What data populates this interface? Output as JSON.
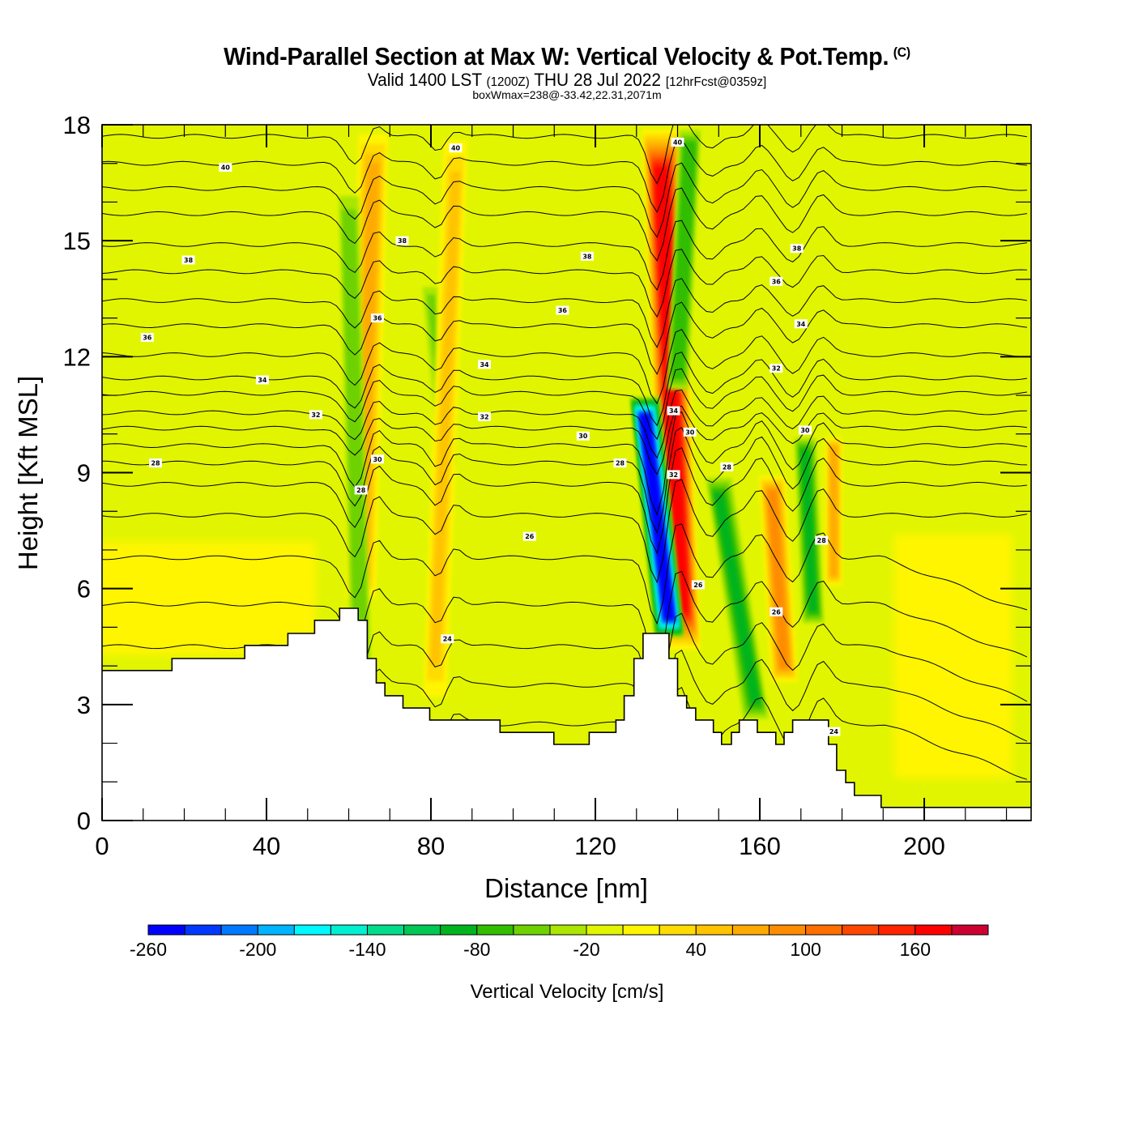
{
  "header": {
    "title": "Wind-Parallel Section at Max W: Vertical Velocity & Pot.Temp.",
    "copyright_mark": "(C)",
    "valid_prefix": "Valid 1400 LST",
    "valid_utc": "(1200Z)",
    "valid_date": "THU 28 Jul 2022",
    "forecast_info": "[12hrFcst@0359z]",
    "box_max": "boxWmax=238@-33.42,22.31,2071m"
  },
  "chart_data": {
    "type": "heatmap",
    "title": "Wind-Parallel Section at Max W: Vertical Velocity & Pot.Temp.",
    "xlabel": "Distance [nm]",
    "ylabel": "Height [Kft MSL]",
    "xlim": [
      0,
      226
    ],
    "ylim": [
      0,
      18
    ],
    "x_ticks": [
      0,
      40,
      80,
      120,
      160,
      200
    ],
    "x_tick_labels": [
      "0",
      "40",
      "80",
      "120",
      "160",
      "200"
    ],
    "x_minor_step": 10,
    "y_ticks": [
      0,
      3,
      6,
      9,
      12,
      15,
      18
    ],
    "y_tick_labels": [
      "0",
      "3",
      "6",
      "9",
      "12",
      "15",
      "18"
    ],
    "y_minor_step": 1,
    "grid": false,
    "colorbar": {
      "title": "Vertical Velocity [cm/s]",
      "min": -260,
      "step": 20,
      "tick_labels": [
        "-260",
        "-200",
        "-140",
        "-80",
        "-20",
        "40",
        "100",
        "160"
      ],
      "tick_values": [
        -260,
        -200,
        -140,
        -80,
        -20,
        40,
        100,
        160
      ],
      "colors": [
        "#0000ff",
        "#0038ff",
        "#0078ff",
        "#00b4ff",
        "#00f8ff",
        "#00f0d0",
        "#00dc8c",
        "#00c855",
        "#00b41e",
        "#32be00",
        "#6ed200",
        "#aae600",
        "#e1f500",
        "#fff500",
        "#ffdc00",
        "#ffc300",
        "#ffaa00",
        "#ff8c00",
        "#ff6e00",
        "#ff4600",
        "#ff2300",
        "#ff0000",
        "#cd0032"
      ]
    },
    "background_velocity": -10,
    "velocity_features": [
      {
        "name": "updraft-band-1",
        "x_bottom": 63,
        "x_top": 66,
        "y_bottom": 5.5,
        "y_top": 18,
        "width_nm": 3.5,
        "value": 70
      },
      {
        "name": "downdraft-band-1",
        "x_bottom": 63,
        "x_top": 60,
        "y_bottom": 3.5,
        "y_top": 16.5,
        "width_nm": 2.5,
        "value": -60
      },
      {
        "name": "downdraft-band-2",
        "x_bottom": 84,
        "x_top": 80,
        "y_bottom": 9,
        "y_top": 14,
        "width_nm": 2.5,
        "value": -50
      },
      {
        "name": "updraft-band-2",
        "x_bottom": 81,
        "x_top": 86,
        "y_bottom": 2.8,
        "y_top": 18,
        "width_nm": 3,
        "value": 40
      },
      {
        "name": "updraft-band-main",
        "x_bottom": 141,
        "x_top": 136,
        "y_bottom": 4.3,
        "y_top": 18,
        "width_nm": 4,
        "value": 170
      },
      {
        "name": "downdraft-band-main",
        "x_bottom": 138,
        "x_top": 132,
        "y_bottom": 4.7,
        "y_top": 11,
        "width_nm": 3,
        "value": -250
      },
      {
        "name": "downdraft-band-upper",
        "x_bottom": 140,
        "x_top": 143,
        "y_bottom": 11,
        "y_top": 18,
        "width_nm": 2.5,
        "value": -80
      },
      {
        "name": "downdraft-band-3",
        "x_bottom": 159,
        "x_top": 150,
        "y_bottom": 2.5,
        "y_top": 9,
        "width_nm": 3,
        "value": -90
      },
      {
        "name": "updraft-band-3",
        "x_bottom": 166,
        "x_top": 163,
        "y_bottom": 3.5,
        "y_top": 9,
        "width_nm": 3,
        "value": 80
      },
      {
        "name": "downdraft-band-4",
        "x_bottom": 173,
        "x_top": 171,
        "y_bottom": 5,
        "y_top": 10,
        "width_nm": 2.5,
        "value": -90
      },
      {
        "name": "updraft-band-4",
        "x_bottom": 178,
        "x_top": 178,
        "y_bottom": 6,
        "y_top": 10,
        "width_nm": 2,
        "value": 60
      },
      {
        "name": "yellow-lowlevel-left",
        "x_bottom": 20,
        "x_top": 20,
        "y_bottom": 4,
        "y_top": 7.5,
        "width_nm": 80,
        "value": 10
      },
      {
        "name": "yellow-lowlevel-right",
        "x_bottom": 207,
        "x_top": 207,
        "y_bottom": 0.5,
        "y_top": 8,
        "width_nm": 36,
        "value": 10
      }
    ],
    "terrain": {
      "x": [
        0,
        17,
        17,
        34.7,
        34.7,
        45.2,
        45.2,
        51.7,
        51.7,
        57.8,
        57.8,
        62.3,
        62.3,
        64.5,
        64.5,
        66.7,
        66.7,
        68.8,
        68.8,
        73.2,
        73.2,
        79.7,
        79.7,
        96.8,
        96.8,
        109.9,
        109.9,
        118.5,
        118.5,
        125,
        125,
        127,
        127,
        129.4,
        129.4,
        131.6,
        131.6,
        137.9,
        137.9,
        140,
        140,
        142.2,
        142.2,
        144.4,
        144.4,
        148.7,
        148.7,
        150.7,
        150.7,
        153.1,
        153.1,
        155,
        155,
        159.4,
        159.4,
        161.6,
        161.6,
        163.9,
        163.9,
        165.9,
        165.9,
        168,
        168,
        176.7,
        176.7,
        178.7,
        178.7,
        180.9,
        180.9,
        183,
        183,
        189.5,
        189.5,
        226
      ],
      "height": [
        3.88,
        3.88,
        4.19,
        4.19,
        4.53,
        4.53,
        4.84,
        4.84,
        5.18,
        5.18,
        5.49,
        5.49,
        5.18,
        5.18,
        4.19,
        4.19,
        3.56,
        3.56,
        3.23,
        3.23,
        2.91,
        2.91,
        2.6,
        2.6,
        2.28,
        2.28,
        1.97,
        1.97,
        2.28,
        2.28,
        2.6,
        2.6,
        3.23,
        3.23,
        4.19,
        4.19,
        4.84,
        4.84,
        4.19,
        4.19,
        3.23,
        3.23,
        2.91,
        2.91,
        2.6,
        2.6,
        2.28,
        2.28,
        1.97,
        1.97,
        2.28,
        2.28,
        2.6,
        2.6,
        2.28,
        2.28,
        2.28,
        2.28,
        1.97,
        1.97,
        2.28,
        2.28,
        2.6,
        2.6,
        1.97,
        1.97,
        1.3,
        1.3,
        0.98,
        0.98,
        0.65,
        0.65,
        0.34,
        0.34
      ]
    },
    "isentropes": {
      "units": "theta contour (labelled values)",
      "level_heights_far_field": [
        17.7,
        17.0,
        16.35,
        15.7,
        14.9,
        14.2,
        13.45,
        12.8,
        12.05,
        11.45,
        11.05,
        10.55,
        10.15,
        9.7,
        9.25,
        8.7,
        7.9,
        6.8,
        5.6,
        4.5,
        3.5,
        2.5
      ],
      "perturbations": [
        {
          "x": 62,
          "dip": -0.9,
          "width": 4
        },
        {
          "x": 66,
          "dip": 0.6,
          "width": 3
        },
        {
          "x": 82,
          "dip": -0.5,
          "width": 3
        },
        {
          "x": 85,
          "dip": 0.3,
          "width": 3
        },
        {
          "x": 135,
          "dip": -1.4,
          "width": 3
        },
        {
          "x": 140,
          "dip": 0.8,
          "width": 3
        },
        {
          "x": 148,
          "dip": -0.4,
          "width": 3
        },
        {
          "x": 160,
          "dip": 0.5,
          "width": 3
        },
        {
          "x": 168,
          "dip": -0.5,
          "width": 3
        },
        {
          "x": 175,
          "dip": 0.5,
          "width": 3
        }
      ]
    },
    "contour_labels": [
      {
        "text": "40",
        "x": 30,
        "y": 16.9
      },
      {
        "text": "40",
        "x": 86,
        "y": 17.4
      },
      {
        "text": "40",
        "x": 140,
        "y": 17.55
      },
      {
        "text": "38",
        "x": 21,
        "y": 14.5
      },
      {
        "text": "38",
        "x": 73,
        "y": 15.0
      },
      {
        "text": "38",
        "x": 118,
        "y": 14.6
      },
      {
        "text": "38",
        "x": 169,
        "y": 14.8
      },
      {
        "text": "36",
        "x": 11,
        "y": 12.5
      },
      {
        "text": "36",
        "x": 67,
        "y": 13.0
      },
      {
        "text": "36",
        "x": 112,
        "y": 13.2
      },
      {
        "text": "36",
        "x": 164,
        "y": 13.95
      },
      {
        "text": "34",
        "x": 39,
        "y": 11.4
      },
      {
        "text": "34",
        "x": 93,
        "y": 11.8
      },
      {
        "text": "34",
        "x": 139,
        "y": 10.6
      },
      {
        "text": "34",
        "x": 170,
        "y": 12.85
      },
      {
        "text": "32",
        "x": 52,
        "y": 10.5
      },
      {
        "text": "32",
        "x": 93,
        "y": 10.45
      },
      {
        "text": "32",
        "x": 139,
        "y": 8.95
      },
      {
        "text": "32",
        "x": 164,
        "y": 11.7
      },
      {
        "text": "30",
        "x": 67,
        "y": 9.35
      },
      {
        "text": "30",
        "x": 117,
        "y": 9.95
      },
      {
        "text": "30",
        "x": 143,
        "y": 10.05
      },
      {
        "text": "30",
        "x": 171,
        "y": 10.1
      },
      {
        "text": "28",
        "x": 13,
        "y": 9.25
      },
      {
        "text": "28",
        "x": 63,
        "y": 8.55
      },
      {
        "text": "28",
        "x": 126,
        "y": 9.25
      },
      {
        "text": "28",
        "x": 152,
        "y": 9.15
      },
      {
        "text": "28",
        "x": 175,
        "y": 7.25
      },
      {
        "text": "26",
        "x": 104,
        "y": 7.35
      },
      {
        "text": "26",
        "x": 145,
        "y": 6.1
      },
      {
        "text": "26",
        "x": 164,
        "y": 5.4
      },
      {
        "text": "24",
        "x": 84,
        "y": 4.7
      },
      {
        "text": "24",
        "x": 178,
        "y": 2.3
      }
    ]
  }
}
